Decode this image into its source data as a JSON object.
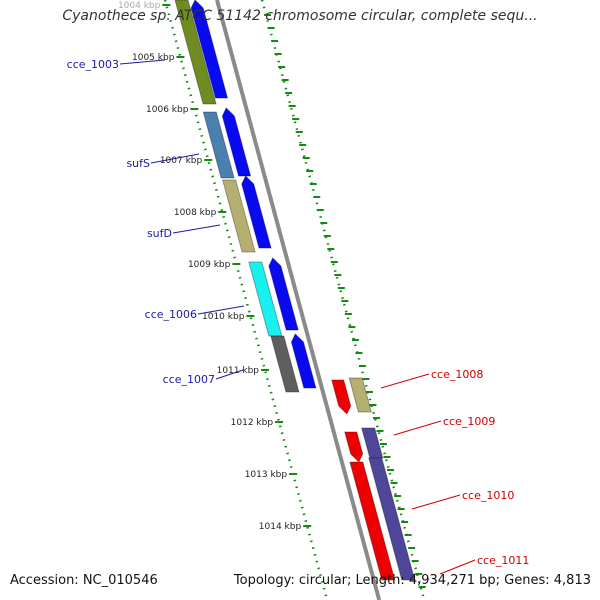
{
  "title": "Cyanothece sp. ATCC 51142 chromosome circular, complete sequ...",
  "footer": {
    "accession": "Accession: NC_010546",
    "topology": "Topology: circular; Length: 4,934,271 bp; Genes: 4,813"
  },
  "scale": {
    "unit": "kbp",
    "ticks": [
      "1004 kbp",
      "1005 kbp",
      "1006 kbp",
      "1007 kbp",
      "1008 kbp",
      "1009 kbp",
      "1010 kbp",
      "1011 kbp",
      "1012 kbp",
      "1013 kbp",
      "1014 kbp"
    ]
  },
  "left_gene_labels": [
    "cce_1003",
    "sufS",
    "sufD",
    "cce_1006",
    "cce_1007"
  ],
  "right_gene_labels": [
    "cce_1008",
    "cce_1009",
    "cce_1010",
    "cce_1011"
  ],
  "colors": {
    "left_label": "#1a1aa6",
    "right_label": "#cc0000",
    "tick_green": "#138a13",
    "backbone": "#8a8a8a",
    "olive": "#6e8c22",
    "steel": "#4a7fb0",
    "khaki": "#b5b071",
    "cyan": "#19f0f0",
    "gray": "#5e5e5e",
    "blue": "#0a0af0",
    "red": "#ee0000",
    "slate": "#4e4698"
  }
}
